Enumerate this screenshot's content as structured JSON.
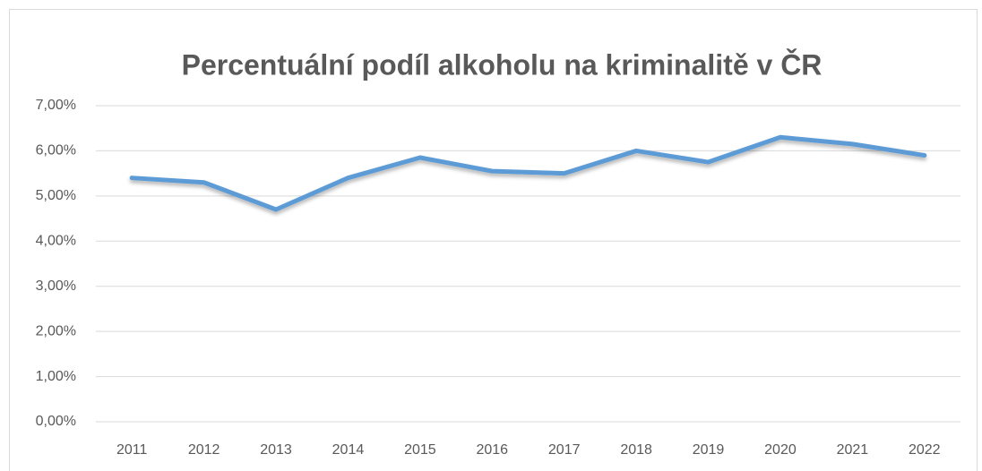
{
  "chart_data": {
    "type": "line",
    "title": "Percentuální podíl alkoholu na kriminalitě v ČR",
    "categories": [
      "2011",
      "2012",
      "2013",
      "2014",
      "2015",
      "2016",
      "2017",
      "2018",
      "2019",
      "2020",
      "2021",
      "2022"
    ],
    "values": [
      5.4,
      5.3,
      4.7,
      5.4,
      5.85,
      5.55,
      5.5,
      6.0,
      5.75,
      6.3,
      6.15,
      5.9
    ],
    "color": "#5b9bd5",
    "ylim": [
      0,
      7
    ],
    "yticks": [
      {
        "value": 0,
        "label": "0,00%"
      },
      {
        "value": 1,
        "label": "1,00%"
      },
      {
        "value": 2,
        "label": "2,00%"
      },
      {
        "value": 3,
        "label": "3,00%"
      },
      {
        "value": 4,
        "label": "4,00%"
      },
      {
        "value": 5,
        "label": "5,00%"
      },
      {
        "value": 6,
        "label": "6,00%"
      },
      {
        "value": 7,
        "label": "7,00%"
      }
    ],
    "grid": true
  }
}
